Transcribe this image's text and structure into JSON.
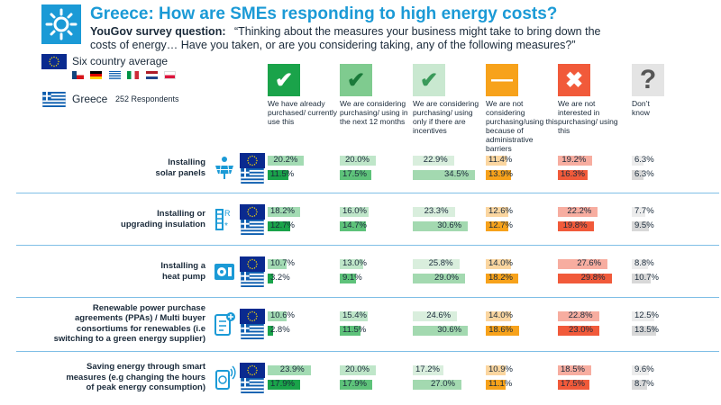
{
  "header": {
    "title": "Greece: How are SMEs responding to high energy costs?",
    "question_label": "YouGov survey question:",
    "question_line1": "“Thinking about the measures your business might take to bring down the",
    "question_line2": "costs of energy… Have you taken, or are you considering taking, any of the following measures?”"
  },
  "legend": {
    "avg_label": "Six country average",
    "greece_label": "Greece",
    "respondents": "252 Respondents"
  },
  "columns": [
    {
      "key": "already",
      "label": "We have already purchased/ currently use this",
      "color": "#1aa34a",
      "light": "#a3dbb3",
      "icon": "check-icon",
      "icon_bg": "#1aa34a",
      "icon_fg": "#ffffff",
      "icon_glyph": "✔"
    },
    {
      "key": "next12",
      "label": "We are considering purchasing/ using in the next 12 months",
      "color": "#5ec27a",
      "light": "#bfe6c9",
      "icon": "check-icon",
      "icon_bg": "#7fcb8f",
      "icon_fg": "#1a7a3a",
      "icon_glyph": "✔"
    },
    {
      "key": "incentives",
      "label": "We are considering purchasing/ using only if there are incentives",
      "color": "#a3d9b0",
      "light": "#d9eedd",
      "icon": "check-icon",
      "icon_bg": "#c9e8d0",
      "icon_fg": "#3a9a5a",
      "icon_glyph": "✔"
    },
    {
      "key": "barriers",
      "label": "We are not considering purchasing/using this because of administrative barriers",
      "color": "#f7a21b",
      "light": "#fbd6a0",
      "icon": "minus-icon",
      "icon_bg": "#f7a21b",
      "icon_fg": "#ffffff",
      "icon_glyph": "—"
    },
    {
      "key": "notinterested",
      "label": "We are not interested in purchasing/ using this",
      "color": "#f15a3a",
      "light": "#f7ada0",
      "icon": "cross-icon",
      "icon_bg": "#f15a3a",
      "icon_fg": "#ffffff",
      "icon_glyph": "✖"
    },
    {
      "key": "dontknow",
      "label": "Don’t know",
      "color": "#d8d8d8",
      "light": "#ececec",
      "icon": "question-icon",
      "icon_bg": "#e4e4e4",
      "icon_fg": "#555555",
      "icon_glyph": "?"
    }
  ],
  "chart_data": {
    "type": "bar",
    "series": [
      {
        "name": "Six country average"
      },
      {
        "name": "Greece"
      }
    ],
    "categories": [
      "Installing solar panels",
      "Installing or upgrading insulation",
      "Installing a heat pump",
      "Renewable power purchase agreements (PPAs) / Multi buyer consortiums for renewables (i.e switching to a green energy supplier)",
      "Saving energy through smart measures (e.g changing the hours of peak energy consumption)"
    ],
    "rows": [
      {
        "label_lines": [
          "Installing",
          "solar panels"
        ],
        "icon": "solar-panel-icon",
        "avg": [
          20.2,
          20.0,
          22.9,
          11.4,
          19.2,
          6.3
        ],
        "gr": [
          11.5,
          17.5,
          34.5,
          13.9,
          16.3,
          6.3
        ],
        "avg_text": [
          "20.2%",
          "20.0%",
          "22.9%",
          "11.4%",
          "19.2%",
          "6.3%"
        ],
        "gr_text": [
          "11.5%",
          "17.5%",
          "34.5%",
          "13.9%",
          "16.3%",
          "6.3%"
        ]
      },
      {
        "label_lines": [
          "Installing or",
          "upgrading insulation"
        ],
        "icon": "insulation-icon",
        "avg": [
          18.2,
          16.0,
          23.3,
          12.6,
          22.2,
          7.7
        ],
        "gr": [
          12.7,
          14.7,
          30.6,
          12.7,
          19.8,
          9.5
        ],
        "avg_text": [
          "18.2%",
          "16.0%",
          "23.3%",
          "12.6%",
          "22.2%",
          "7.7%"
        ],
        "gr_text": [
          "12.7%",
          "14.7%",
          "30.6%",
          "12.7%",
          "19.8%",
          "9.5%"
        ]
      },
      {
        "label_lines": [
          "Installing a",
          "heat pump"
        ],
        "icon": "heat-pump-icon",
        "avg": [
          10.7,
          13.0,
          25.8,
          14.0,
          27.6,
          8.8
        ],
        "gr": [
          3.2,
          9.1,
          29.0,
          18.2,
          29.8,
          10.7
        ],
        "avg_text": [
          "10.7%",
          "13.0%",
          "25.8%",
          "14.0%",
          "27.6%",
          "8.8%"
        ],
        "gr_text": [
          "3.2%",
          "9.1%",
          "29.0%",
          "18.2%",
          "29.8%",
          "10.7%"
        ]
      },
      {
        "label_lines": [
          "Renewable power purchase",
          "agreements (PPAs) / Multi buyer",
          "consortiums for renewables (i.e",
          "switching to a green energy supplier)"
        ],
        "icon": "green-energy-icon",
        "avg": [
          10.6,
          15.4,
          24.6,
          14.0,
          22.8,
          12.5
        ],
        "gr": [
          2.8,
          11.5,
          30.6,
          18.6,
          23.0,
          13.5
        ],
        "avg_text": [
          "10.6%",
          "15.4%",
          "24.6%",
          "14.0%",
          "22.8%",
          "12.5%"
        ],
        "gr_text": [
          "2.8%",
          "11.5%",
          "30.6%",
          "18.6%",
          "23.0%",
          "13.5%"
        ]
      },
      {
        "label_lines": [
          "Saving energy through smart",
          "measures (e.g changing the hours",
          "of peak energy consumption)"
        ],
        "icon": "smart-meter-icon",
        "avg": [
          23.9,
          20.0,
          17.2,
          10.9,
          18.5,
          9.6
        ],
        "gr": [
          17.9,
          17.9,
          27.0,
          11.1,
          17.5,
          8.7
        ],
        "avg_text": [
          "23.9%",
          "20.0%",
          "17.2%",
          "10.9%",
          "18.5%",
          "9.6%"
        ],
        "gr_text": [
          "17.9%",
          "17.9%",
          "27.0%",
          "11.1%",
          "17.5%",
          "8.7%"
        ]
      }
    ]
  }
}
